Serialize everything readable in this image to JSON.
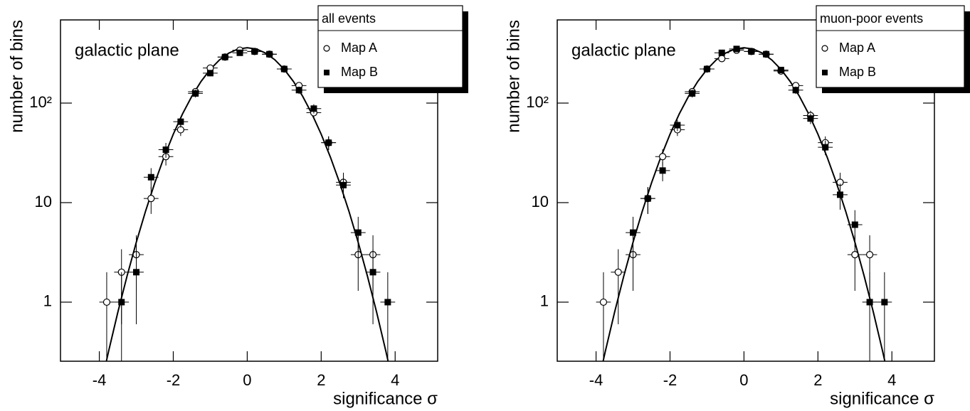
{
  "chart_data": [
    {
      "type": "scatter",
      "log_y": true,
      "annotation": "galactic plane",
      "legend_title": "all events",
      "xlabel": "significance σ",
      "ylabel": "number of bins",
      "x": [
        -3.8,
        -3.4,
        -3.0,
        -2.6,
        -2.2,
        -1.8,
        -1.4,
        -1.0,
        -0.6,
        -0.2,
        0.2,
        0.6,
        1.0,
        1.4,
        1.8,
        2.2,
        2.6,
        3.0,
        3.4,
        3.8
      ],
      "xerr": 0.2,
      "series": [
        {
          "name": "Map A",
          "color": "#000000",
          "marker": "open-circle",
          "values": [
            1,
            2,
            3,
            11,
            29,
            54,
            130,
            225,
            290,
            340,
            330,
            310,
            220,
            150,
            80,
            40,
            16,
            3,
            3,
            null
          ],
          "errors": [
            1,
            1.4,
            1.7,
            3.3,
            5.4,
            7.3,
            11.4,
            15,
            17,
            18.4,
            18.2,
            17.6,
            14.8,
            12.2,
            8.9,
            6.3,
            4,
            1.7,
            1.7,
            null
          ]
        },
        {
          "name": "Map B",
          "color": "#000000",
          "marker": "square",
          "values": [
            null,
            1,
            2,
            18,
            34,
            65,
            125,
            200,
            290,
            320,
            330,
            310,
            220,
            135,
            88,
            40,
            15,
            5,
            2,
            1
          ],
          "errors": [
            null,
            1,
            1.4,
            4.2,
            5.8,
            8.1,
            11.2,
            14.1,
            17,
            17.9,
            18.2,
            17.6,
            14.8,
            11.6,
            9.4,
            6.3,
            3.9,
            2.2,
            1.4,
            1
          ]
        }
      ],
      "fit": {
        "color": "#000000",
        "x": [
          -3.9,
          -3.75,
          -3.5,
          -3.25,
          -3.0,
          -2.75,
          -2.5,
          -2.25,
          -2.0,
          -1.75,
          -1.5,
          -1.25,
          -1.0,
          -0.75,
          -0.5,
          -0.25,
          0,
          0.25,
          0.5,
          0.75,
          1.0,
          1.25,
          1.5,
          1.75,
          2.0,
          2.25,
          2.5,
          2.75,
          3.0,
          3.25,
          3.5,
          3.75,
          3.9
        ],
        "values": [
          0.18,
          0.32,
          0.79,
          1.83,
          4.0,
          8.2,
          15.8,
          28.6,
          48.7,
          77.9,
          116.9,
          164.8,
          218.3,
          271.7,
          317.7,
          348.9,
          360,
          348.9,
          317.7,
          271.7,
          218.3,
          164.8,
          116.9,
          77.9,
          48.7,
          28.6,
          15.8,
          8.2,
          4.0,
          1.83,
          0.79,
          0.32,
          0.18
        ]
      },
      "xlim": [
        -5.05,
        5.15
      ],
      "ylim": [
        0.255,
        685
      ],
      "xticks": [
        -4,
        -2,
        0,
        2,
        4
      ],
      "yticks": [
        1,
        10,
        {
          "value": 100,
          "label": "10²"
        }
      ]
    },
    {
      "type": "scatter",
      "log_y": true,
      "annotation": "galactic plane",
      "legend_title": "muon-poor events",
      "xlabel": "significance σ",
      "ylabel": "number of bins",
      "x": [
        -3.8,
        -3.4,
        -3.0,
        -2.6,
        -2.2,
        -1.8,
        -1.4,
        -1.0,
        -0.6,
        -0.2,
        0.2,
        0.6,
        1.0,
        1.4,
        1.8,
        2.2,
        2.6,
        3.0,
        3.4,
        3.8
      ],
      "xerr": 0.2,
      "series": [
        {
          "name": "Map A",
          "color": "#000000",
          "marker": "open-circle",
          "values": [
            1,
            2,
            3,
            11,
            29,
            54,
            130,
            220,
            280,
            340,
            330,
            310,
            210,
            150,
            75,
            40,
            16,
            3,
            3,
            null
          ],
          "errors": [
            1,
            1.4,
            1.7,
            3.3,
            5.4,
            7.3,
            11.4,
            14.8,
            16.7,
            18.4,
            18.2,
            17.6,
            14.5,
            12.2,
            8.7,
            6.3,
            4,
            1.7,
            1.7,
            null
          ]
        },
        {
          "name": "Map B",
          "color": "#000000",
          "marker": "square",
          "values": [
            null,
            null,
            5,
            11,
            21,
            60,
            125,
            220,
            320,
            350,
            330,
            310,
            215,
            135,
            70,
            36,
            12,
            6,
            1,
            1
          ],
          "errors": [
            null,
            null,
            2.2,
            3.3,
            4.6,
            7.7,
            11.2,
            14.8,
            17.9,
            18.7,
            18.2,
            17.6,
            14.7,
            11.6,
            8.4,
            6,
            3.5,
            2.4,
            1,
            1
          ]
        }
      ],
      "fit": {
        "color": "#000000",
        "x": [
          -3.9,
          -3.75,
          -3.5,
          -3.25,
          -3.0,
          -2.75,
          -2.5,
          -2.25,
          -2.0,
          -1.75,
          -1.5,
          -1.25,
          -1.0,
          -0.75,
          -0.5,
          -0.25,
          0,
          0.25,
          0.5,
          0.75,
          1.0,
          1.25,
          1.5,
          1.75,
          2.0,
          2.25,
          2.5,
          2.75,
          3.0,
          3.25,
          3.5,
          3.75,
          3.9
        ],
        "values": [
          0.18,
          0.32,
          0.79,
          1.83,
          4.0,
          8.2,
          15.8,
          28.6,
          48.7,
          77.9,
          116.9,
          164.8,
          218.3,
          271.7,
          317.7,
          348.9,
          360,
          348.9,
          317.7,
          271.7,
          218.3,
          164.8,
          116.9,
          77.9,
          48.7,
          28.6,
          15.8,
          8.2,
          4.0,
          1.83,
          0.79,
          0.32,
          0.18
        ]
      },
      "xlim": [
        -5.05,
        5.15
      ],
      "ylim": [
        0.255,
        685
      ],
      "xticks": [
        -4,
        -2,
        0,
        2,
        4
      ],
      "yticks": [
        1,
        10,
        {
          "value": 100,
          "label": "10²"
        }
      ]
    }
  ]
}
